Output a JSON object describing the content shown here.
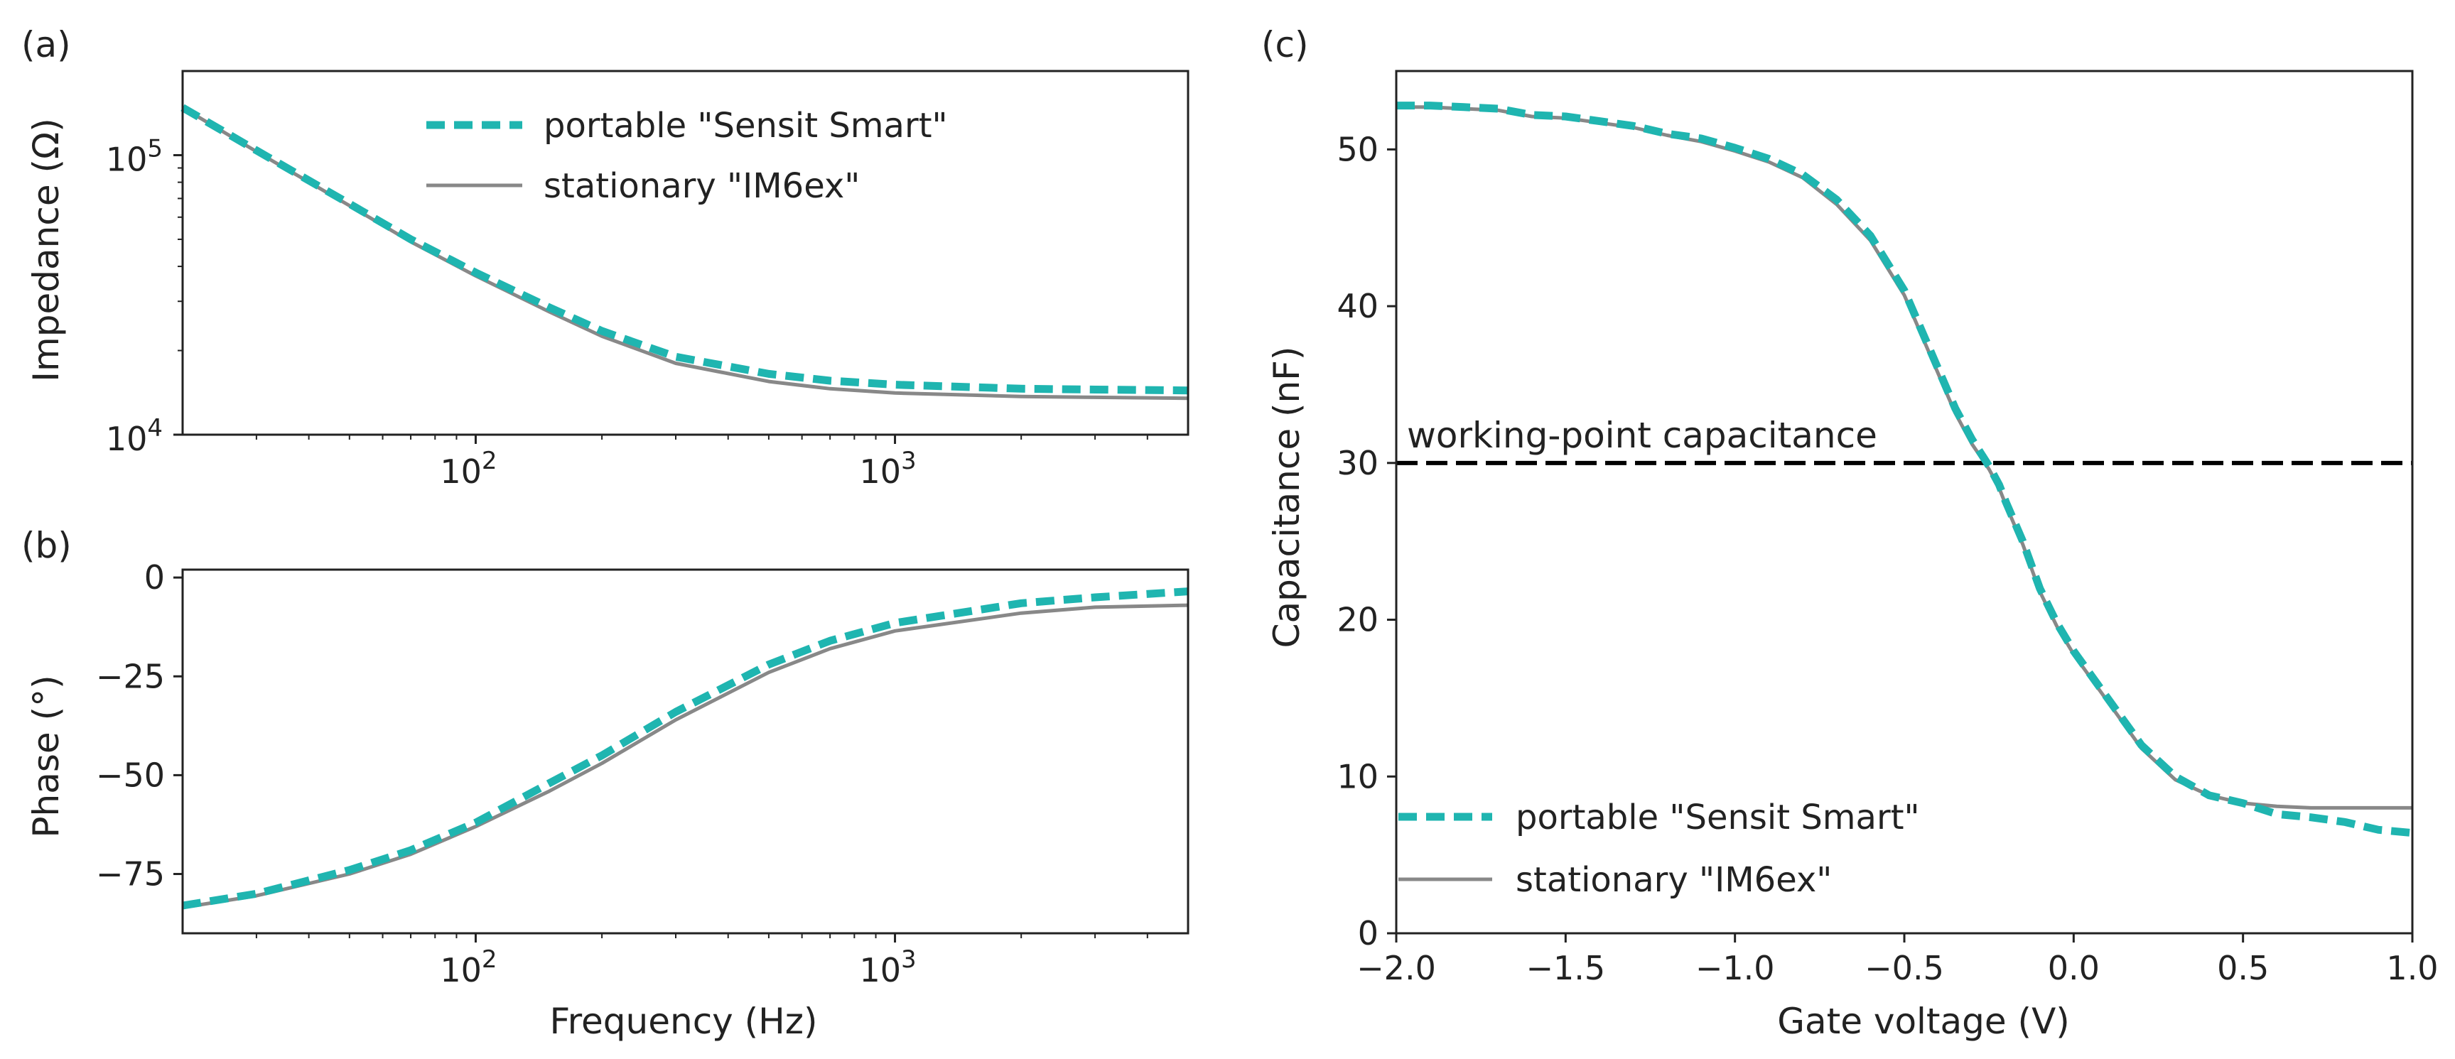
{
  "chart_data": [
    {
      "panel": "a",
      "panel_label": "(a)",
      "type": "line",
      "xscale": "log",
      "yscale": "log",
      "xlim": [
        20,
        5000
      ],
      "ylim": [
        10000,
        200000
      ],
      "xlabel": "",
      "ylabel": "Impedance (Ω)",
      "xticks": [
        {
          "value": 100,
          "base": "10",
          "exp": "2"
        },
        {
          "value": 1000,
          "base": "10",
          "exp": "3"
        }
      ],
      "yticks": [
        {
          "value": 10000,
          "base": "10",
          "exp": "4"
        },
        {
          "value": 100000,
          "base": "10",
          "exp": "5"
        }
      ],
      "legend": {
        "location": "top-center"
      },
      "series": [
        {
          "name": "portable \"Sensit Smart\"",
          "color": "#1fb5b0",
          "style": "dashed",
          "x": [
            20,
            30,
            50,
            70,
            100,
            150,
            200,
            300,
            500,
            700,
            1000,
            2000,
            3000,
            5000
          ],
          "y": [
            148000,
            104000,
            67000,
            50000,
            38000,
            28500,
            23500,
            19000,
            16500,
            15600,
            15100,
            14600,
            14500,
            14400
          ]
        },
        {
          "name": "stationary \"IM6ex\"",
          "color": "#888888",
          "style": "solid",
          "x": [
            20,
            30,
            50,
            70,
            100,
            150,
            200,
            300,
            500,
            700,
            1000,
            2000,
            3000,
            5000
          ],
          "y": [
            148000,
            103000,
            66000,
            49000,
            37000,
            27500,
            22500,
            18000,
            15500,
            14600,
            14100,
            13700,
            13600,
            13500
          ]
        }
      ]
    },
    {
      "panel": "b",
      "panel_label": "(b)",
      "type": "line",
      "xscale": "log",
      "yscale": "linear",
      "xlim": [
        20,
        5000
      ],
      "ylim": [
        -90,
        2
      ],
      "xlabel": "Frequency (Hz)",
      "ylabel": "Phase (°)",
      "xticks": [
        {
          "value": 100,
          "base": "10",
          "exp": "2"
        },
        {
          "value": 1000,
          "base": "10",
          "exp": "3"
        }
      ],
      "yticks": [
        {
          "value": 0,
          "label": "0"
        },
        {
          "value": -25,
          "label": "−25"
        },
        {
          "value": -50,
          "label": "−50"
        },
        {
          "value": -75,
          "label": "−75"
        }
      ],
      "series": [
        {
          "name": "portable \"Sensit Smart\"",
          "color": "#1fb5b0",
          "style": "dashed",
          "x": [
            20,
            30,
            50,
            70,
            100,
            150,
            200,
            300,
            500,
            700,
            1000,
            2000,
            3000,
            5000
          ],
          "y": [
            -83,
            -80,
            -74,
            -69,
            -62,
            -52,
            -45,
            -34,
            -22,
            -16,
            -11.5,
            -6.5,
            -5,
            -3.5
          ]
        },
        {
          "name": "stationary \"IM6ex\"",
          "color": "#888888",
          "style": "solid",
          "x": [
            20,
            30,
            50,
            70,
            100,
            150,
            200,
            300,
            500,
            700,
            1000,
            2000,
            3000,
            5000
          ],
          "y": [
            -83.5,
            -80.5,
            -75,
            -70,
            -63,
            -54,
            -47,
            -36,
            -24,
            -18,
            -13.5,
            -9,
            -7.5,
            -7
          ]
        }
      ]
    },
    {
      "panel": "c",
      "panel_label": "(c)",
      "type": "line",
      "xscale": "linear",
      "yscale": "linear",
      "xlim": [
        -2.0,
        1.0
      ],
      "ylim": [
        0,
        55
      ],
      "xlabel": "Gate voltage (V)",
      "ylabel": "Capacitance (nF)",
      "xticks": [
        {
          "value": -2.0,
          "label": "−2.0"
        },
        {
          "value": -1.5,
          "label": "−1.5"
        },
        {
          "value": -1.0,
          "label": "−1.0"
        },
        {
          "value": -0.5,
          "label": "−0.5"
        },
        {
          "value": 0.0,
          "label": "0.0"
        },
        {
          "value": 0.5,
          "label": "0.5"
        },
        {
          "value": 1.0,
          "label": "1.0"
        }
      ],
      "yticks": [
        {
          "value": 0,
          "label": "0"
        },
        {
          "value": 10,
          "label": "10"
        },
        {
          "value": 20,
          "label": "20"
        },
        {
          "value": 30,
          "label": "30"
        },
        {
          "value": 40,
          "label": "40"
        },
        {
          "value": 50,
          "label": "50"
        }
      ],
      "hline": {
        "y": 30,
        "label": "working-point capacitance",
        "color": "#000000",
        "style": "dashed"
      },
      "legend": {
        "location": "lower-left"
      },
      "series": [
        {
          "name": "portable \"Sensit Smart\"",
          "color": "#1fb5b0",
          "style": "dashed",
          "x": [
            -2.0,
            -1.9,
            -1.8,
            -1.7,
            -1.6,
            -1.5,
            -1.4,
            -1.3,
            -1.2,
            -1.1,
            -1.0,
            -0.9,
            -0.8,
            -0.7,
            -0.6,
            -0.5,
            -0.4,
            -0.35,
            -0.3,
            -0.25,
            -0.22,
            -0.2,
            -0.15,
            -0.1,
            -0.05,
            0.0,
            0.1,
            0.2,
            0.3,
            0.4,
            0.5,
            0.6,
            0.7,
            0.8,
            0.9,
            1.0
          ],
          "y": [
            52.8,
            52.8,
            52.7,
            52.6,
            52.2,
            52.1,
            51.8,
            51.5,
            51.0,
            50.7,
            50.1,
            49.4,
            48.4,
            46.8,
            44.5,
            41.0,
            36.0,
            33.5,
            31.5,
            29.8,
            28.6,
            27.5,
            25.0,
            22.0,
            19.8,
            18.0,
            15.0,
            12.0,
            10.0,
            8.8,
            8.3,
            7.6,
            7.4,
            7.1,
            6.6,
            6.4
          ]
        },
        {
          "name": "stationary \"IM6ex\"",
          "color": "#888888",
          "style": "solid",
          "x": [
            -2.0,
            -1.9,
            -1.8,
            -1.7,
            -1.6,
            -1.5,
            -1.4,
            -1.3,
            -1.2,
            -1.1,
            -1.0,
            -0.9,
            -0.8,
            -0.7,
            -0.6,
            -0.5,
            -0.4,
            -0.35,
            -0.3,
            -0.25,
            -0.22,
            -0.2,
            -0.15,
            -0.1,
            -0.05,
            0.0,
            0.1,
            0.2,
            0.3,
            0.4,
            0.5,
            0.6,
            0.7,
            0.8,
            0.9,
            1.0
          ],
          "y": [
            52.7,
            52.7,
            52.6,
            52.5,
            52.1,
            52.0,
            51.7,
            51.4,
            50.9,
            50.5,
            49.9,
            49.2,
            48.2,
            46.5,
            44.2,
            40.7,
            35.7,
            33.2,
            31.2,
            29.6,
            28.4,
            27.3,
            24.8,
            21.8,
            19.6,
            17.8,
            14.8,
            11.8,
            9.8,
            8.8,
            8.3,
            8.1,
            8.0,
            8.0,
            8.0,
            8.0
          ]
        }
      ]
    }
  ]
}
